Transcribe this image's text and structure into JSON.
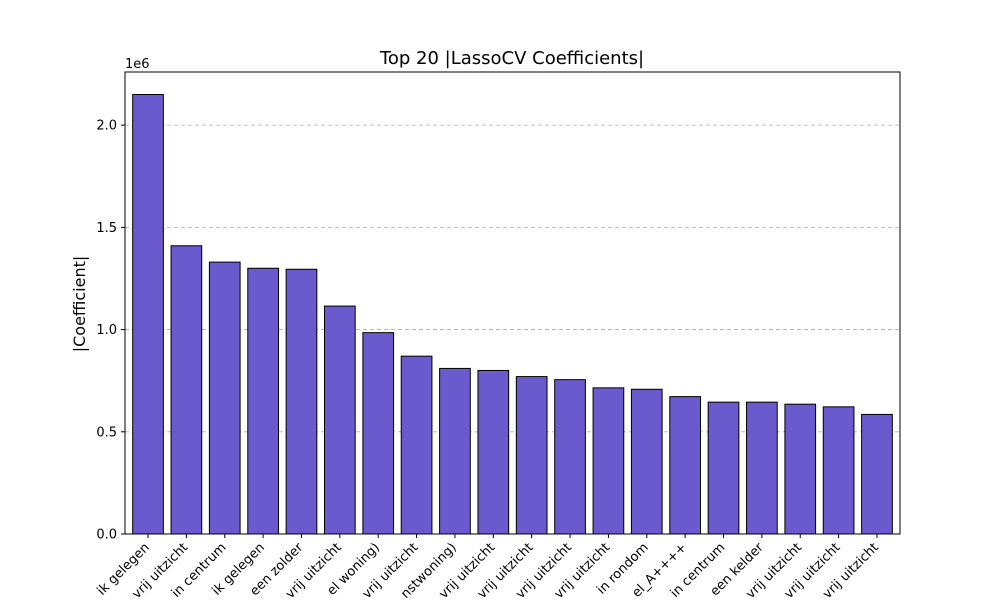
{
  "chart_data": {
    "type": "bar",
    "title": "Top 20 |LassoCV Coefficients|",
    "xlabel": "",
    "ylabel": "|Coefficient|",
    "offset_label": "1e6",
    "ylim": [
      0,
      2260000
    ],
    "yticks": [
      0,
      500000,
      1000000,
      1500000,
      2000000
    ],
    "ytick_labels": [
      "0.0",
      "0.5",
      "1.0",
      "1.5",
      "2.0"
    ],
    "grid": "y-dashed",
    "bar_color": "#6a5acd",
    "categories": [
      "ik gelegen",
      "vrij uitzicht",
      "in centrum",
      "ik gelegen",
      "een zolder",
      "vrij uitzicht",
      "el woning)",
      "vrij uitzicht",
      "nstwoning)",
      "vrij uitzicht",
      "vrij uitzicht",
      "vrij uitzicht",
      "vrij uitzicht",
      "in rondom",
      "el_A++++",
      "in centrum",
      "een kelder",
      "vrij uitzicht",
      "vrij uitzicht",
      "vrij uitzicht"
    ],
    "values": [
      2150000,
      1410000,
      1330000,
      1300000,
      1295000,
      1115000,
      985000,
      870000,
      810000,
      800000,
      770000,
      755000,
      715000,
      708000,
      672000,
      645000,
      645000,
      635000,
      622000,
      585000
    ]
  }
}
